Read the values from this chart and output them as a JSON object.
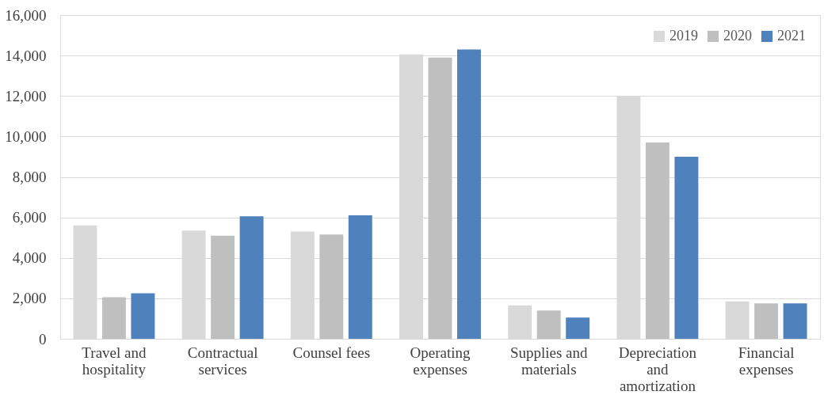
{
  "chart_data": {
    "type": "bar",
    "categories": [
      "Travel and hospitality",
      "Contractual services",
      "Counsel fees",
      "Operating expenses",
      "Supplies and materials",
      "Depreciation and amortization",
      "Financial expenses"
    ],
    "series": [
      {
        "name": "2019",
        "color": "#d9d9d9",
        "values": [
          5600,
          5350,
          5300,
          14050,
          1650,
          12000,
          1850
        ]
      },
      {
        "name": "2020",
        "color": "#bfbfbf",
        "values": [
          2050,
          5100,
          5150,
          13900,
          1400,
          9700,
          1750
        ]
      },
      {
        "name": "2021",
        "color": "#4f81bd",
        "values": [
          2250,
          6050,
          6100,
          14300,
          1050,
          9000,
          1750
        ]
      }
    ],
    "ylim": [
      0,
      16000
    ],
    "yticks": [
      {
        "value": 0,
        "label": "0"
      },
      {
        "value": 2000,
        "label": "2,000"
      },
      {
        "value": 4000,
        "label": "4,000"
      },
      {
        "value": 6000,
        "label": "6,000"
      },
      {
        "value": 8000,
        "label": "8,000"
      },
      {
        "value": 10000,
        "label": "10,000"
      },
      {
        "value": 12000,
        "label": "12,000"
      },
      {
        "value": 14000,
        "label": "14,000"
      },
      {
        "value": 16000,
        "label": "16,000"
      }
    ],
    "grid": "y",
    "legend": "top right"
  }
}
